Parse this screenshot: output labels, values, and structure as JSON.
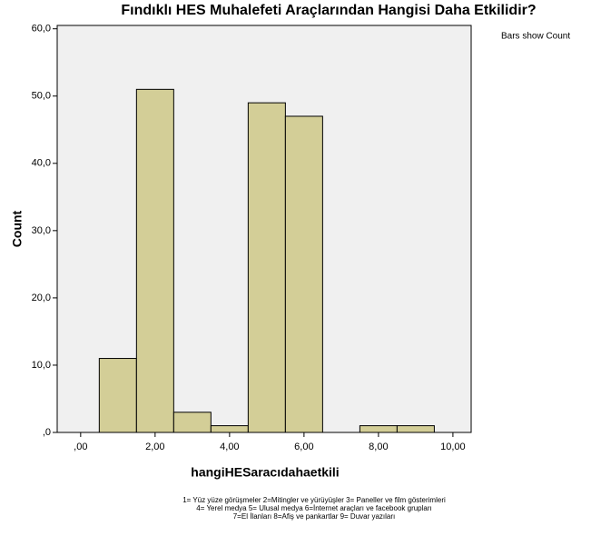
{
  "chart_data": {
    "type": "histogram",
    "title": "Fındıklı HES Muhalefeti Araçlarından Hangisi Daha Etkilidir?",
    "legend_note": "Bars show Count",
    "x_label": "hangiHESaracıdahaetkili",
    "y_label": "Count",
    "bins": [
      0.5,
      1.5,
      2.5,
      3.5,
      4.5,
      5.5,
      6.5,
      7.5,
      8.5,
      9.5
    ],
    "counts": [
      11,
      51,
      3,
      1,
      49,
      47,
      0,
      1,
      1
    ],
    "color": "#d3ce97",
    "xlim": [
      -0.63,
      10.49
    ],
    "ylim": [
      0,
      60.5
    ],
    "xticks": [
      {
        "value": 0,
        "label": ",00"
      },
      {
        "value": 2,
        "label": "2,00"
      },
      {
        "value": 4,
        "label": "4,00"
      },
      {
        "value": 6,
        "label": "6,00"
      },
      {
        "value": 8,
        "label": "8,00"
      },
      {
        "value": 10,
        "label": "10,00"
      }
    ],
    "yticks": [
      {
        "value": 0,
        "label": ",0"
      },
      {
        "value": 10,
        "label": "10,0"
      },
      {
        "value": 20,
        "label": "20,0"
      },
      {
        "value": 30,
        "label": "30,0"
      },
      {
        "value": 40,
        "label": "40,0"
      },
      {
        "value": 50,
        "label": "50,0"
      },
      {
        "value": 60,
        "label": "60,0"
      }
    ],
    "notes": [
      "1= Yüz yüze görüşmeler 2=Mitingler ve yürüyüşler 3= Paneller ve film gösterimleri",
      "4= Yerel medya 5= Ulusal medya 6=İnternet araçları ve facebook grupları",
      "7=El İlanları 8=Afiş ve pankartlar 9= Duvar yazıları"
    ]
  }
}
